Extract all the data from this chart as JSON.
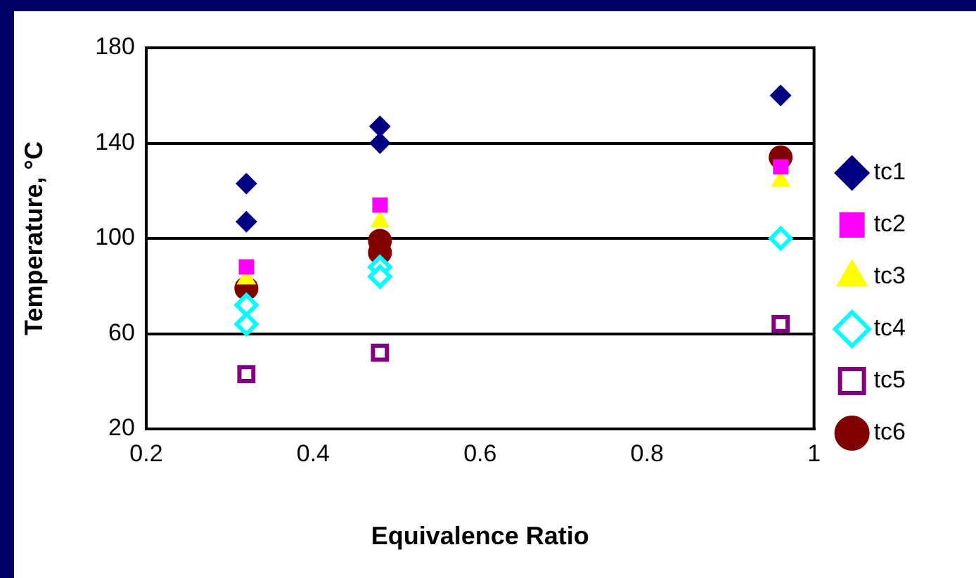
{
  "chart_data": {
    "type": "scatter",
    "xlabel": "Equivalence Ratio",
    "ylabel": "Temperature, °C",
    "xlim": [
      0.2,
      1
    ],
    "xticks": [
      0.2,
      0.4,
      0.6,
      0.8,
      1
    ],
    "ylim": [
      20,
      180
    ],
    "yticks": [
      20,
      60,
      100,
      140,
      180
    ],
    "grid": "y",
    "legend": "right",
    "series": [
      {
        "name": "tc1",
        "color": "#000080",
        "marker": "diamond",
        "x": [
          0.32,
          0.32,
          0.48,
          0.48,
          0.96
        ],
        "values": [
          123,
          107,
          147,
          140,
          160
        ]
      },
      {
        "name": "tc2",
        "color": "#ff00ff",
        "marker": "square",
        "x": [
          0.32,
          0.48,
          0.96
        ],
        "values": [
          88,
          114,
          130
        ]
      },
      {
        "name": "tc3",
        "color": "#ffff00",
        "marker": "triangle",
        "x": [
          0.32,
          0.48,
          0.96
        ],
        "values": [
          83,
          107,
          124
        ]
      },
      {
        "name": "tc4",
        "color": "#00ffff",
        "marker": "diamond",
        "x": [
          0.32,
          0.32,
          0.48,
          0.48,
          0.96
        ],
        "values": [
          72,
          64,
          88,
          84,
          100
        ]
      },
      {
        "name": "tc5",
        "color": "#800080",
        "marker": "square",
        "x": [
          0.32,
          0.48,
          0.96
        ],
        "values": [
          43,
          52,
          64
        ]
      },
      {
        "name": "tc6",
        "color": "#800000",
        "marker": "circle",
        "x": [
          0.32,
          0.48,
          0.48,
          0.96
        ],
        "values": [
          79,
          99,
          94,
          134
        ]
      }
    ]
  }
}
